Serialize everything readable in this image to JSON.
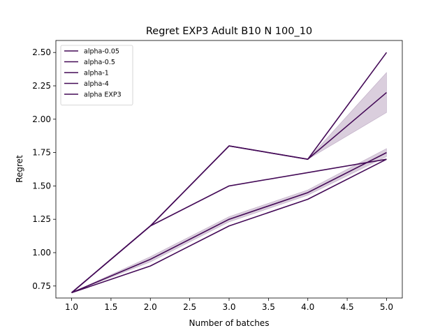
{
  "chart_data": {
    "type": "line",
    "title": "Regret EXP3 Adult B10 N 100_10",
    "xlabel": "Number of batches",
    "ylabel": "Regret",
    "xlim": [
      0.8,
      5.2
    ],
    "ylim": [
      0.66,
      2.59
    ],
    "xticks": [
      "1.0",
      "1.5",
      "2.0",
      "2.5",
      "3.0",
      "3.5",
      "4.0",
      "4.5",
      "5.0"
    ],
    "yticks": [
      "0.75",
      "1.00",
      "1.25",
      "1.50",
      "1.75",
      "2.00",
      "2.25",
      "2.50"
    ],
    "legend_position": "top-left",
    "line_color": "#440a57",
    "band_color": "#440a57",
    "x": [
      1,
      2,
      3,
      4,
      5
    ],
    "series": [
      {
        "name": "alpha-0.05",
        "values": [
          0.7,
          1.2,
          1.8,
          1.7,
          2.5
        ]
      },
      {
        "name": "alpha-0.5",
        "values": [
          0.7,
          1.2,
          1.8,
          1.7,
          2.2
        ],
        "band_low": [
          0.7,
          1.2,
          1.8,
          1.7,
          2.05
        ],
        "band_high": [
          0.7,
          1.2,
          1.8,
          1.7,
          2.35
        ]
      },
      {
        "name": "alpha-1",
        "values": [
          0.7,
          1.2,
          1.5,
          1.6,
          1.7
        ]
      },
      {
        "name": "alpha-4",
        "values": [
          0.7,
          0.95,
          1.25,
          1.45,
          1.75
        ],
        "band_low": [
          0.7,
          0.93,
          1.23,
          1.43,
          1.72
        ],
        "band_high": [
          0.7,
          0.97,
          1.27,
          1.47,
          1.78
        ]
      },
      {
        "name": "alpha EXP3",
        "values": [
          0.7,
          0.9,
          1.2,
          1.4,
          1.7
        ]
      }
    ]
  }
}
